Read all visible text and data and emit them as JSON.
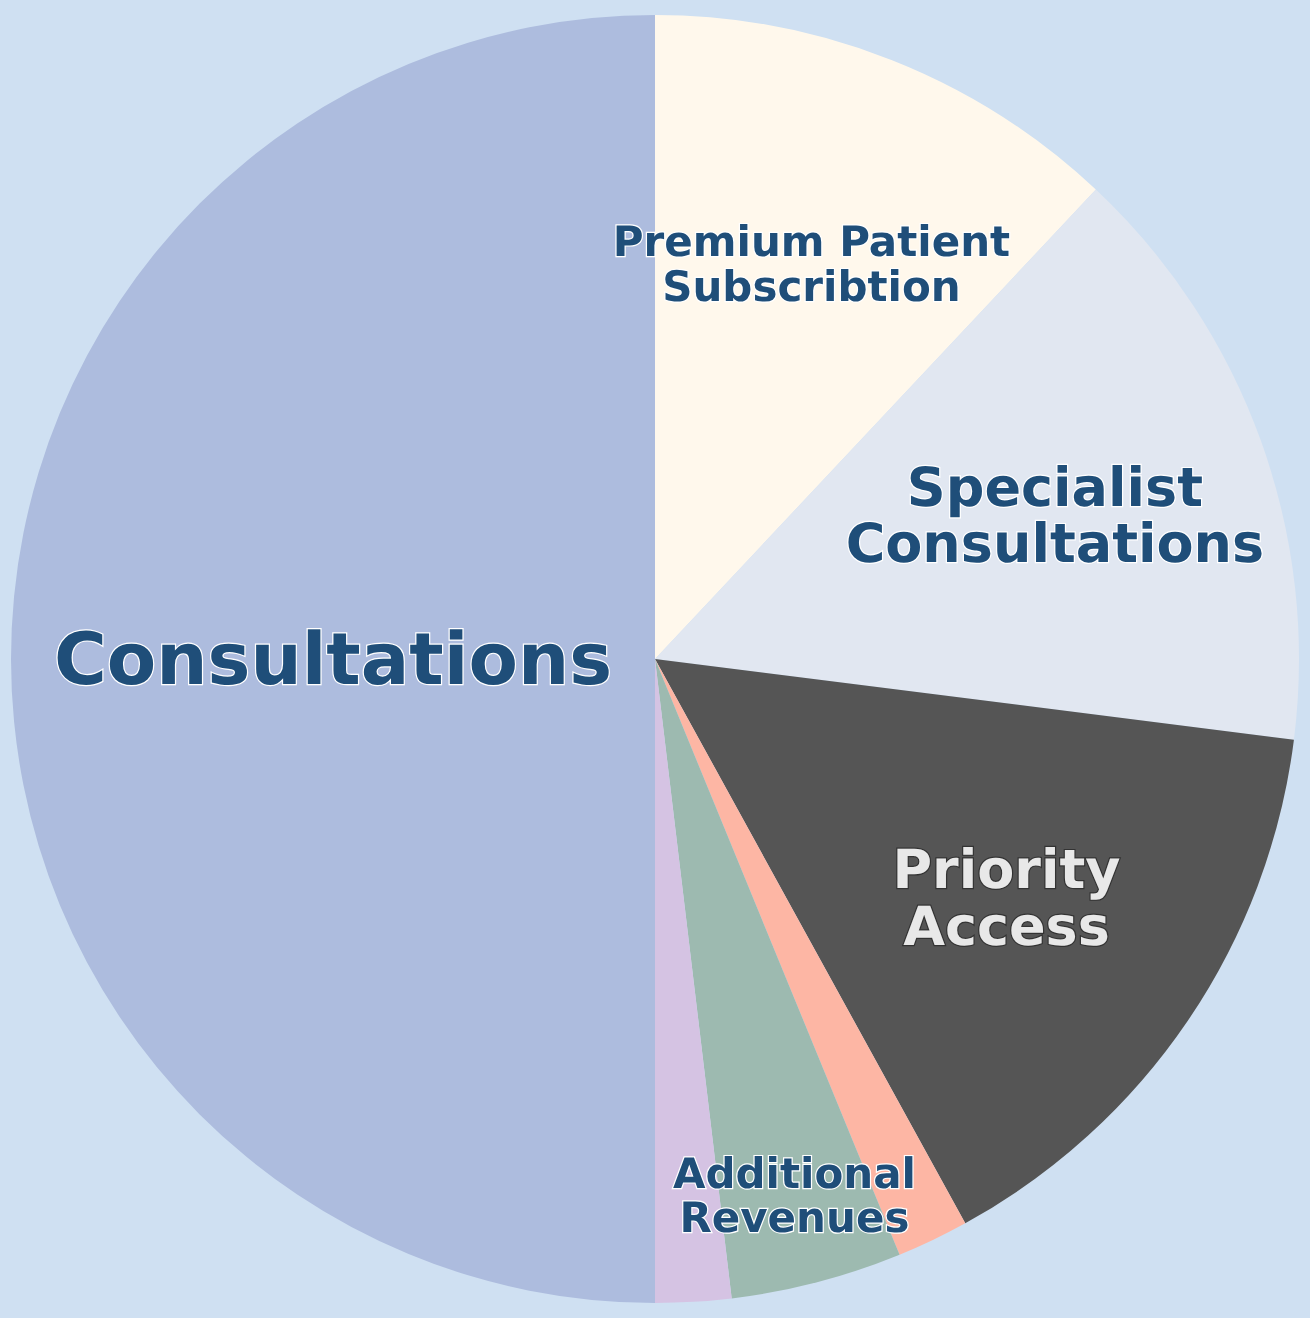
{
  "chart_data": {
    "type": "pie",
    "categories": [
      "Premium Patient Subscribtion",
      "Specialist Consultations",
      "Priority Access",
      null,
      "Additional Revenues",
      null,
      "Consultations"
    ],
    "values": [
      12,
      15,
      15,
      1.8,
      4.3,
      1.9,
      50
    ],
    "colors": [
      "#fff8ec",
      "#e1e7f1",
      "#555555",
      "#fdb6a4",
      "#9dbab0",
      "#d5c3e3",
      "#adbcde"
    ]
  }
}
